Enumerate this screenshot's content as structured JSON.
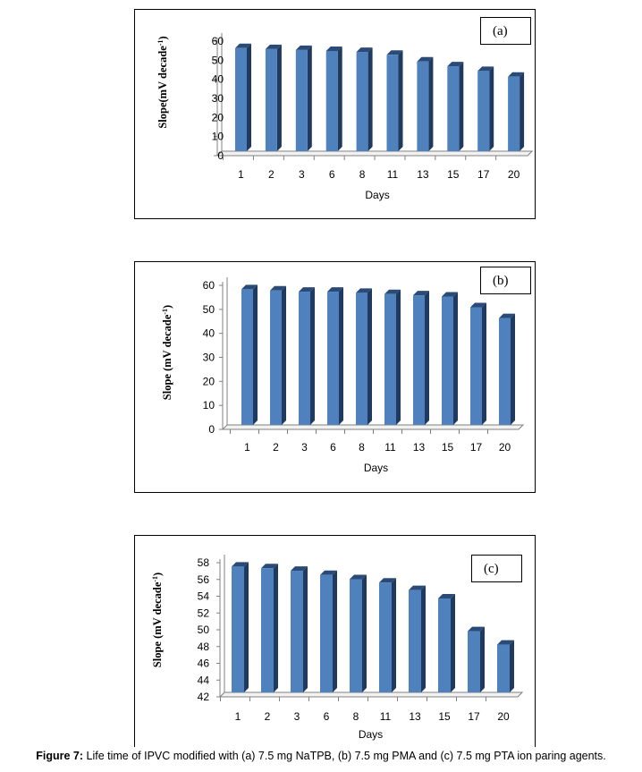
{
  "figure": {
    "caption_label": "Figure 7:",
    "caption_text": " Life time of IPVC modified with (a) 7.5 mg NaTPB, (b) 7.5 mg PMA and (c) 7.5 mg PTA ion paring agents."
  },
  "colors": {
    "bar_front": "#4f81bd",
    "bar_side": "#1f3a5e",
    "bar_top": "#2a4b77",
    "axis": "#808080"
  },
  "chart_data": [
    {
      "type": "bar",
      "panel_label": "(a)",
      "categories": [
        "1",
        "2",
        "3",
        "6",
        "8",
        "11",
        "13",
        "15",
        "17",
        "20"
      ],
      "values": [
        54,
        53.5,
        53,
        52.5,
        52,
        50.5,
        47,
        44.5,
        42,
        39
      ],
      "ylabel": "Slope(mV decade",
      "ylabel_sup": "-1",
      "ylabel_end": ")",
      "xlabel": "Days",
      "ylim": [
        0,
        60
      ],
      "yticks": [
        "60",
        "50",
        "40",
        "30",
        "20",
        "10",
        "0"
      ],
      "grid": false,
      "legend": false
    },
    {
      "type": "bar",
      "panel_label": "(b)",
      "categories": [
        "1",
        "2",
        "3",
        "6",
        "8",
        "11",
        "13",
        "15",
        "17",
        "20"
      ],
      "values": [
        56.5,
        56,
        55.5,
        55.5,
        55,
        54.5,
        54,
        53.5,
        49,
        44.5
      ],
      "ylabel": "Slope (mV decade",
      "ylabel_sup": "-1",
      "ylabel_end": ")",
      "xlabel": "Days",
      "ylim": [
        0,
        60
      ],
      "yticks": [
        "60",
        "50",
        "40",
        "30",
        "20",
        "10",
        "0"
      ],
      "grid": false,
      "legend": false
    },
    {
      "type": "bar",
      "panel_label": "(c)",
      "categories": [
        "1",
        "2",
        "3",
        "6",
        "8",
        "11",
        "13",
        "15",
        "17",
        "20"
      ],
      "values": [
        57,
        56.8,
        56.5,
        56,
        55.5,
        55.1,
        54.2,
        53.2,
        49.3,
        47.7
      ],
      "ylabel": "Slope (mV decade",
      "ylabel_sup": "-1",
      "ylabel_end": ")",
      "xlabel": "Days",
      "ylim": [
        42,
        58
      ],
      "yticks": [
        "58",
        "56",
        "54",
        "52",
        "50",
        "48",
        "46",
        "44",
        "42"
      ],
      "grid": false,
      "legend": false
    }
  ]
}
